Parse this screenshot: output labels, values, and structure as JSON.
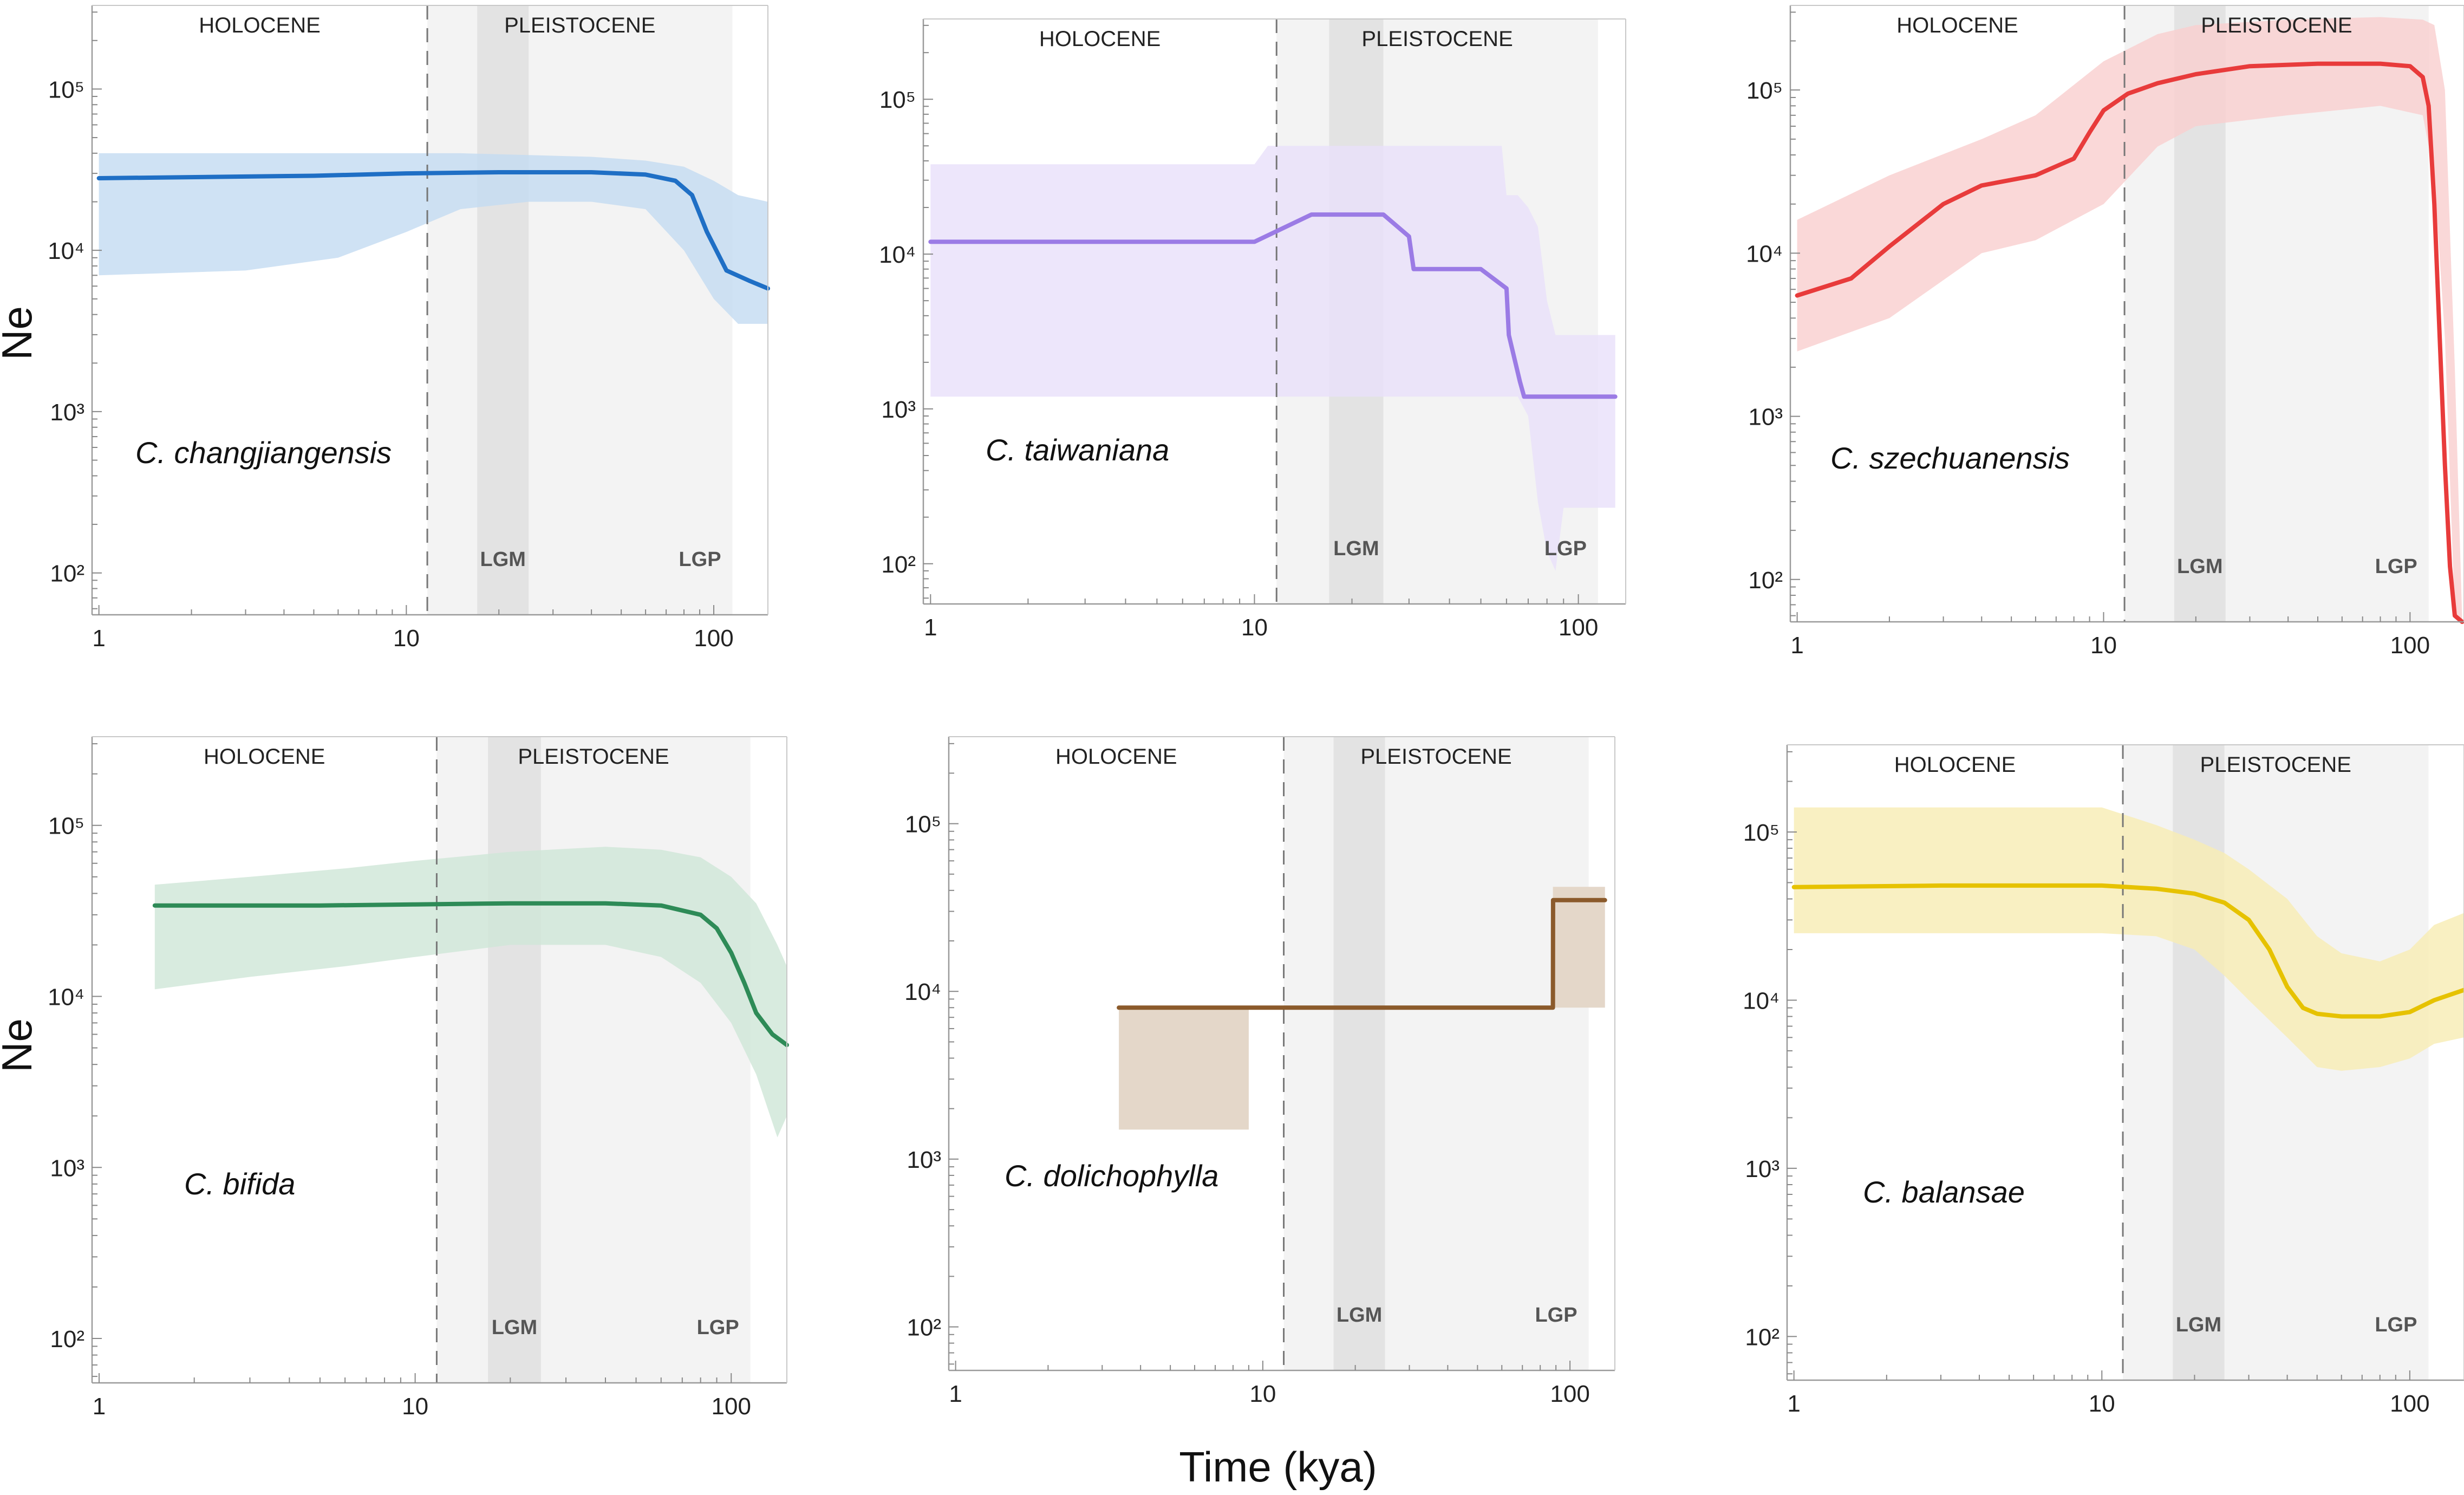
{
  "figure": {
    "ylabel": "Ne",
    "xlabel": "Time (kya)"
  },
  "chart_data": [
    {
      "type": "line",
      "title": "",
      "species": "C. changjiangensis",
      "xscale": "log",
      "yscale": "log",
      "xlim": [
        0.95,
        150
      ],
      "ylim": [
        55,
        330000
      ],
      "xticks": [
        1,
        10,
        100
      ],
      "xtick_labels": [
        "1",
        "10",
        "100"
      ],
      "yticks": [
        100,
        1000,
        10000,
        100000
      ],
      "ytick_labels": [
        "10²",
        "10³",
        "10⁴",
        "10⁵"
      ],
      "eras": {
        "holocene_label": "HOLOCENE",
        "pleistocene_label": "PLEISTOCENE",
        "boundary_kya": 11.7,
        "pleistocene_range": [
          11.7,
          115
        ]
      },
      "periods": [
        {
          "label": "LGM",
          "range": [
            17,
            25
          ]
        },
        {
          "label": "LGP",
          "range": [
            11.7,
            115
          ]
        }
      ],
      "color": "#1f6fc5",
      "band_color": "#c5dcf2",
      "series": [
        {
          "name": "median Ne",
          "x": [
            1,
            5,
            10,
            20,
            40,
            60,
            75,
            85,
            95,
            110,
            130,
            150
          ],
          "values": [
            28000,
            29000,
            30000,
            30500,
            30500,
            29500,
            27000,
            22000,
            13000,
            7500,
            6500,
            5800
          ]
        }
      ],
      "band": {
        "x": [
          1,
          3,
          6,
          10,
          15,
          25,
          40,
          60,
          80,
          100,
          120,
          150
        ],
        "lower": [
          7000,
          7500,
          9000,
          13000,
          18000,
          20000,
          20000,
          18000,
          10000,
          5000,
          3500,
          3500
        ],
        "upper": [
          40000,
          40000,
          40000,
          40000,
          40000,
          39000,
          38000,
          36000,
          33000,
          27000,
          22000,
          20000
        ]
      }
    },
    {
      "type": "line",
      "title": "",
      "species": "C. taiwaniana",
      "xscale": "log",
      "yscale": "log",
      "xlim": [
        0.95,
        140
      ],
      "ylim": [
        55,
        330000
      ],
      "xticks": [
        1,
        10,
        100
      ],
      "xtick_labels": [
        "1",
        "10",
        "100"
      ],
      "yticks": [
        100,
        1000,
        10000,
        100000
      ],
      "ytick_labels": [
        "10²",
        "10³",
        "10⁴",
        "10⁵"
      ],
      "eras": {
        "holocene_label": "HOLOCENE",
        "pleistocene_label": "PLEISTOCENE",
        "boundary_kya": 11.7,
        "pleistocene_range": [
          11.7,
          115
        ]
      },
      "periods": [
        {
          "label": "LGM",
          "range": [
            17,
            25
          ]
        },
        {
          "label": "LGP",
          "range": [
            11.7,
            115
          ]
        }
      ],
      "color": "#9b7be5",
      "band_color": "#e9e1fa",
      "series": [
        {
          "name": "median Ne",
          "x": [
            1,
            10,
            15,
            20,
            25,
            30,
            31,
            33,
            35,
            40,
            50,
            60,
            61,
            66,
            68,
            70,
            130
          ],
          "values": [
            12000,
            12000,
            18000,
            18000,
            18000,
            13000,
            8000,
            8000,
            8000,
            8000,
            8000,
            6000,
            3000,
            1500,
            1200,
            1200,
            1200
          ]
        }
      ],
      "band": {
        "x": [
          1,
          10,
          11,
          20,
          40,
          58,
          60,
          65,
          70,
          75,
          80,
          85,
          90,
          130
        ],
        "lower": [
          1200,
          1200,
          1200,
          1200,
          1200,
          1200,
          1200,
          1200,
          900,
          250,
          120,
          90,
          230,
          230
        ],
        "upper": [
          38000,
          38000,
          50000,
          50000,
          50000,
          50000,
          24000,
          24000,
          20000,
          15000,
          5000,
          3000,
          3000,
          3000
        ]
      }
    },
    {
      "type": "line",
      "title": "",
      "species": "C. szechuanensis",
      "xscale": "log",
      "yscale": "log",
      "xlim": [
        0.95,
        150
      ],
      "ylim": [
        55,
        330000
      ],
      "xticks": [
        1,
        10,
        100
      ],
      "xtick_labels": [
        "1",
        "10",
        "100"
      ],
      "yticks": [
        100,
        1000,
        10000,
        100000
      ],
      "ytick_labels": [
        "10²",
        "10³",
        "10⁴",
        "10⁵"
      ],
      "eras": {
        "holocene_label": "HOLOCENE",
        "pleistocene_label": "PLEISTOCENE",
        "boundary_kya": 11.7,
        "pleistocene_range": [
          11.7,
          115
        ]
      },
      "periods": [
        {
          "label": "LGM",
          "range": [
            17,
            25
          ]
        },
        {
          "label": "LGP",
          "range": [
            11.7,
            115
          ]
        }
      ],
      "color": "#e83b3b",
      "band_color": "#f9d0d0",
      "series": [
        {
          "name": "median Ne",
          "x": [
            1,
            1.5,
            2,
            3,
            4,
            6,
            8,
            9,
            10,
            12,
            15,
            20,
            30,
            50,
            80,
            100,
            110,
            115,
            120,
            125,
            130,
            135,
            140,
            148
          ],
          "values": [
            5500,
            7000,
            11000,
            20000,
            26000,
            30000,
            38000,
            55000,
            75000,
            95000,
            110000,
            125000,
            140000,
            145000,
            145000,
            140000,
            120000,
            80000,
            20000,
            3000,
            500,
            120,
            60,
            55
          ]
        }
      ],
      "band": {
        "x": [
          1,
          2,
          4,
          6,
          10,
          15,
          20,
          40,
          80,
          110,
          120,
          130,
          140,
          148
        ],
        "lower": [
          2500,
          4000,
          10000,
          12000,
          20000,
          45000,
          60000,
          70000,
          80000,
          70000,
          30000,
          3000,
          60,
          55
        ],
        "upper": [
          16000,
          30000,
          50000,
          70000,
          150000,
          220000,
          250000,
          270000,
          280000,
          270000,
          250000,
          100000,
          2000,
          55
        ]
      }
    },
    {
      "type": "line",
      "title": "",
      "species": "C. bifida",
      "xscale": "log",
      "yscale": "log",
      "xlim": [
        0.95,
        150
      ],
      "ylim": [
        55,
        330000
      ],
      "xticks": [
        1,
        10,
        100
      ],
      "xtick_labels": [
        "1",
        "10",
        "100"
      ],
      "yticks": [
        100,
        1000,
        10000,
        100000
      ],
      "ytick_labels": [
        "10²",
        "10³",
        "10⁴",
        "10⁵"
      ],
      "eras": {
        "holocene_label": "HOLOCENE",
        "pleistocene_label": "PLEISTOCENE",
        "boundary_kya": 11.7,
        "pleistocene_range": [
          11.7,
          115
        ]
      },
      "periods": [
        {
          "label": "LGM",
          "range": [
            17,
            25
          ]
        },
        {
          "label": "LGP",
          "range": [
            11.7,
            115
          ]
        }
      ],
      "color": "#2e8b57",
      "band_color": "#cfe6d8",
      "series": [
        {
          "name": "median Ne",
          "x": [
            1.5,
            5,
            10,
            20,
            40,
            60,
            80,
            90,
            100,
            110,
            120,
            135,
            150
          ],
          "values": [
            34000,
            34000,
            34500,
            35000,
            35000,
            34000,
            30000,
            25000,
            18000,
            12000,
            8000,
            6000,
            5200
          ]
        }
      ],
      "band": {
        "x": [
          1.5,
          3,
          6,
          10,
          20,
          40,
          60,
          80,
          100,
          120,
          140,
          150
        ],
        "lower": [
          11000,
          13000,
          15000,
          17000,
          20000,
          20000,
          17000,
          12000,
          7000,
          3500,
          1500,
          2000
        ],
        "upper": [
          45000,
          50000,
          56000,
          62000,
          70000,
          75000,
          72000,
          65000,
          50000,
          35000,
          20000,
          15000
        ]
      }
    },
    {
      "type": "line",
      "title": "",
      "species": "C. dolichophylla",
      "xscale": "log",
      "yscale": "log",
      "xlim": [
        0.95,
        140
      ],
      "ylim": [
        55,
        330000
      ],
      "xticks": [
        1,
        10,
        100
      ],
      "xtick_labels": [
        "1",
        "10",
        "100"
      ],
      "yticks": [
        100,
        1000,
        10000,
        100000
      ],
      "ytick_labels": [
        "10²",
        "10³",
        "10⁴",
        "10⁵"
      ],
      "eras": {
        "holocene_label": "HOLOCENE",
        "pleistocene_label": "PLEISTOCENE",
        "boundary_kya": 11.7,
        "pleistocene_range": [
          11.7,
          115
        ]
      },
      "periods": [
        {
          "label": "LGM",
          "range": [
            17,
            25
          ]
        },
        {
          "label": "LGP",
          "range": [
            11.7,
            115
          ]
        }
      ],
      "color": "#8b5a2b",
      "band_color": "#e3d5c6",
      "series": [
        {
          "name": "median Ne",
          "x": [
            3.4,
            10,
            50,
            88,
            88.1,
            130
          ],
          "values": [
            8000,
            8000,
            8000,
            8000,
            35000,
            35000
          ]
        }
      ],
      "band_rects": [
        {
          "x0": 3.4,
          "x1": 9,
          "lower": 1500,
          "upper": 8000
        },
        {
          "x0": 88,
          "x1": 130,
          "lower": 8000,
          "upper": 42000
        }
      ]
    },
    {
      "type": "line",
      "title": "",
      "species": "C. balansae",
      "xscale": "log",
      "yscale": "log",
      "xlim": [
        0.95,
        150
      ],
      "ylim": [
        55,
        330000
      ],
      "xticks": [
        1,
        10,
        100
      ],
      "xtick_labels": [
        "1",
        "10",
        "100"
      ],
      "yticks": [
        100,
        1000,
        10000,
        100000
      ],
      "ytick_labels": [
        "10²",
        "10³",
        "10⁴",
        "10⁵"
      ],
      "eras": {
        "holocene_label": "HOLOCENE",
        "pleistocene_label": "PLEISTOCENE",
        "boundary_kya": 11.7,
        "pleistocene_range": [
          11.7,
          115
        ]
      },
      "periods": [
        {
          "label": "LGM",
          "range": [
            17,
            25
          ]
        },
        {
          "label": "LGP",
          "range": [
            11.7,
            115
          ]
        }
      ],
      "color": "#e6c200",
      "band_color": "#f8edb5",
      "series": [
        {
          "name": "median Ne",
          "x": [
            1,
            3,
            10,
            15,
            20,
            25,
            30,
            35,
            40,
            45,
            50,
            60,
            80,
            100,
            120,
            150
          ],
          "values": [
            47000,
            48000,
            48000,
            46000,
            43000,
            38000,
            30000,
            20000,
            12000,
            9000,
            8300,
            8000,
            8000,
            8500,
            10000,
            11500
          ]
        }
      ],
      "band": {
        "x": [
          1,
          3,
          10,
          15,
          20,
          25,
          30,
          40,
          50,
          60,
          80,
          100,
          120,
          150
        ],
        "lower": [
          25000,
          25000,
          25000,
          24000,
          20000,
          14000,
          10000,
          6000,
          4000,
          3800,
          4000,
          4500,
          5500,
          6000
        ],
        "upper": [
          140000,
          140000,
          140000,
          110000,
          90000,
          75000,
          60000,
          40000,
          24000,
          19000,
          17000,
          20000,
          28000,
          33000
        ]
      }
    }
  ]
}
